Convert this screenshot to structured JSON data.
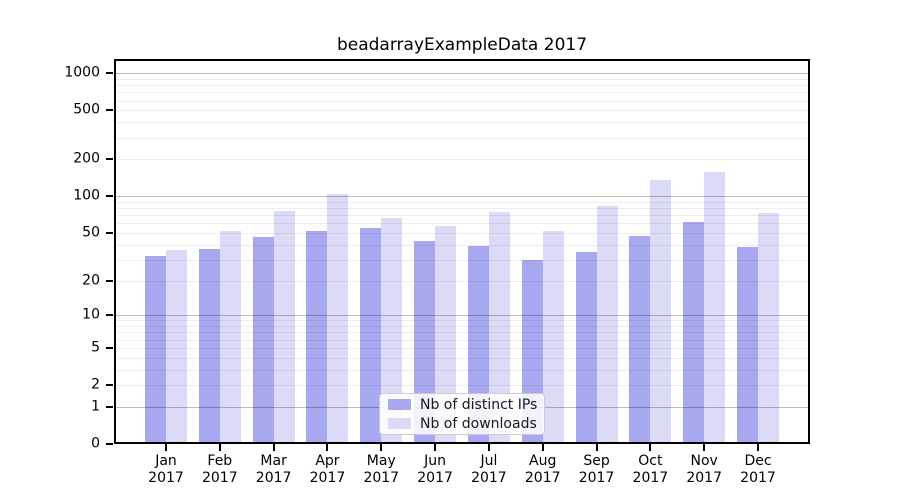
{
  "chart_data": {
    "type": "bar",
    "title": "beadarrayExampleData 2017",
    "categories": [
      "Jan",
      "Feb",
      "Mar",
      "Apr",
      "May",
      "Jun",
      "Jul",
      "Aug",
      "Sep",
      "Oct",
      "Nov",
      "Dec"
    ],
    "x_tick_label_line2": "2017",
    "series": [
      {
        "name": "Nb of distinct IPs",
        "color": "#a8a8f0",
        "values": [
          32,
          37,
          46,
          52,
          55,
          43,
          39,
          30,
          35,
          47,
          62,
          38
        ]
      },
      {
        "name": "Nb of downloads",
        "color": "#dbdbf8",
        "values": [
          36,
          52,
          76,
          105,
          66,
          57,
          75,
          52,
          84,
          136,
          158,
          73
        ]
      }
    ],
    "xlabel": "",
    "ylabel": "",
    "y_scale": "log10(1+value), 0 at baseline",
    "ylim": [
      0,
      1290
    ],
    "y_tick_values": [
      1000,
      500,
      200,
      100,
      50,
      20,
      10,
      5,
      2,
      1,
      0
    ],
    "y_tick_labels": [
      "1000",
      "500",
      "200",
      "100",
      "50",
      "20",
      "10",
      "5",
      "2",
      "1",
      "0"
    ],
    "grid": "on",
    "grid_major_values": [
      1,
      10,
      100,
      1000
    ],
    "grid_minor_values": [
      2,
      3,
      4,
      5,
      6,
      7,
      8,
      9,
      20,
      30,
      40,
      50,
      60,
      70,
      80,
      90,
      200,
      300,
      400,
      500,
      600,
      700,
      800,
      900
    ],
    "legend": {
      "position": "lower center",
      "entries": [
        "Nb of distinct IPs",
        "Nb of downloads"
      ]
    },
    "colors": {
      "ips_bar": "#a8a8f0",
      "downloads_bar": "#dbdbf8",
      "grid_major": "rgba(0,0,0,0.26)",
      "grid_minor": "rgba(0,0,0,0.07)",
      "spine": "#000000",
      "background": "#ffffff",
      "legend_border": "#cccccc"
    }
  }
}
